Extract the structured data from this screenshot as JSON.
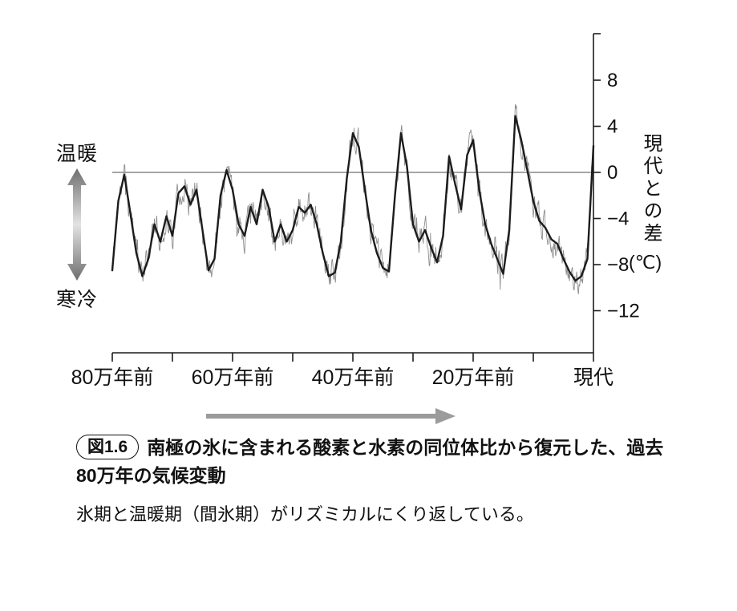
{
  "figure": {
    "left_axis_labels": {
      "warm": "温暖",
      "cold": "寒冷"
    },
    "right_axis": {
      "title_vertical": "現代との差",
      "unit": "(℃)",
      "ticks": [
        {
          "value": 8,
          "label": "8"
        },
        {
          "value": 4,
          "label": "4"
        },
        {
          "value": 0,
          "label": "0"
        },
        {
          "value": -4,
          "label": "−4"
        },
        {
          "value": -8,
          "label": "−8"
        },
        {
          "value": -12,
          "label": "−12"
        }
      ]
    },
    "x_axis": {
      "major_ticks": [
        {
          "value": 80,
          "label": "80万年前"
        },
        {
          "value": 60,
          "label": "60万年前"
        },
        {
          "value": 40,
          "label": "40万年前"
        },
        {
          "value": 20,
          "label": "20万年前"
        },
        {
          "value": 0,
          "label": "現代"
        }
      ],
      "minor_tick_step": 10
    },
    "colors": {
      "raw_line": "#8f8f8f",
      "smooth_line": "#1c1c1c",
      "axis": "#1c1c1c",
      "zero_line": "#6f6f6f",
      "time_arrow": "#9b9b9b",
      "gradient_dark": "#6e6e6e",
      "gradient_light": "#e3e3e3",
      "text": "#111111"
    }
  },
  "caption": {
    "tag": "図1.6",
    "title": "南極の氷に含まれる酸素と水素の同位体比から復元した、過去80万年の気候変動",
    "body": "氷期と温暖期（間氷期）がリズミカルにくり返している。"
  },
  "chart_data": {
    "type": "line",
    "title": "南極の氷に含まれる酸素と水素の同位体比から復元した、過去80万年の気候変動",
    "xlabel": "",
    "ylabel": "現代との差 (℃)",
    "xlim": [
      80,
      0
    ],
    "ylim": [
      -14,
      11.5
    ],
    "x_unit": "万年前",
    "y_unit": "℃",
    "zero_reference_line": 0,
    "x_man_years_ago": [
      80,
      79,
      78,
      77,
      76,
      75,
      74,
      73,
      72,
      71,
      70,
      69,
      68,
      67,
      66,
      65,
      64,
      63,
      62,
      61,
      60,
      59,
      58,
      57,
      56,
      55,
      54,
      53,
      52,
      51,
      50,
      49,
      48,
      47,
      46,
      45,
      44,
      43,
      42,
      41,
      40,
      39,
      38,
      37,
      36,
      35,
      34,
      33,
      32,
      31,
      30,
      29,
      28,
      27,
      26,
      25,
      24,
      23,
      22,
      21,
      20,
      19,
      18,
      17,
      16,
      15,
      14,
      13,
      12,
      11,
      10,
      9,
      8,
      7,
      6,
      5,
      4,
      3,
      2,
      1,
      0
    ],
    "series": [
      {
        "name": "smoothed-temperature-anomaly",
        "values": [
          -8.5,
          -2.5,
          -0.2,
          -3.5,
          -7,
          -9,
          -7.5,
          -4.5,
          -6,
          -3.8,
          -5.5,
          -1.8,
          -1.2,
          -2.8,
          -1.5,
          -5,
          -8.5,
          -7.5,
          -2,
          0.2,
          -1.5,
          -4.5,
          -5.5,
          -3,
          -4.5,
          -1.5,
          -3,
          -6,
          -4.5,
          -6,
          -5,
          -3,
          -3.5,
          -2.8,
          -4.5,
          -7,
          -9,
          -8.7,
          -6,
          -0.5,
          3.4,
          2.2,
          -1.5,
          -5,
          -7,
          -8.3,
          -8.6,
          -2,
          3.4,
          0.5,
          -4.5,
          -6,
          -5,
          -6.5,
          -7.8,
          -5.5,
          1.4,
          -1,
          -3.2,
          1.5,
          2.8,
          -1.5,
          -4.5,
          -6.2,
          -7.5,
          -8.8,
          -5,
          4.9,
          2.8,
          0.2,
          -2.5,
          -4.2,
          -4.8,
          -5.8,
          -6.2,
          -7.5,
          -8.6,
          -9.4,
          -9.0,
          -7.5,
          2.3
        ]
      },
      {
        "name": "raw-isotope-temperature",
        "derived": "smoothed series plus high-frequency noise",
        "noise_seed": 11,
        "noise_amplitude": 1.0,
        "noise_step": 0.1
      }
    ]
  }
}
